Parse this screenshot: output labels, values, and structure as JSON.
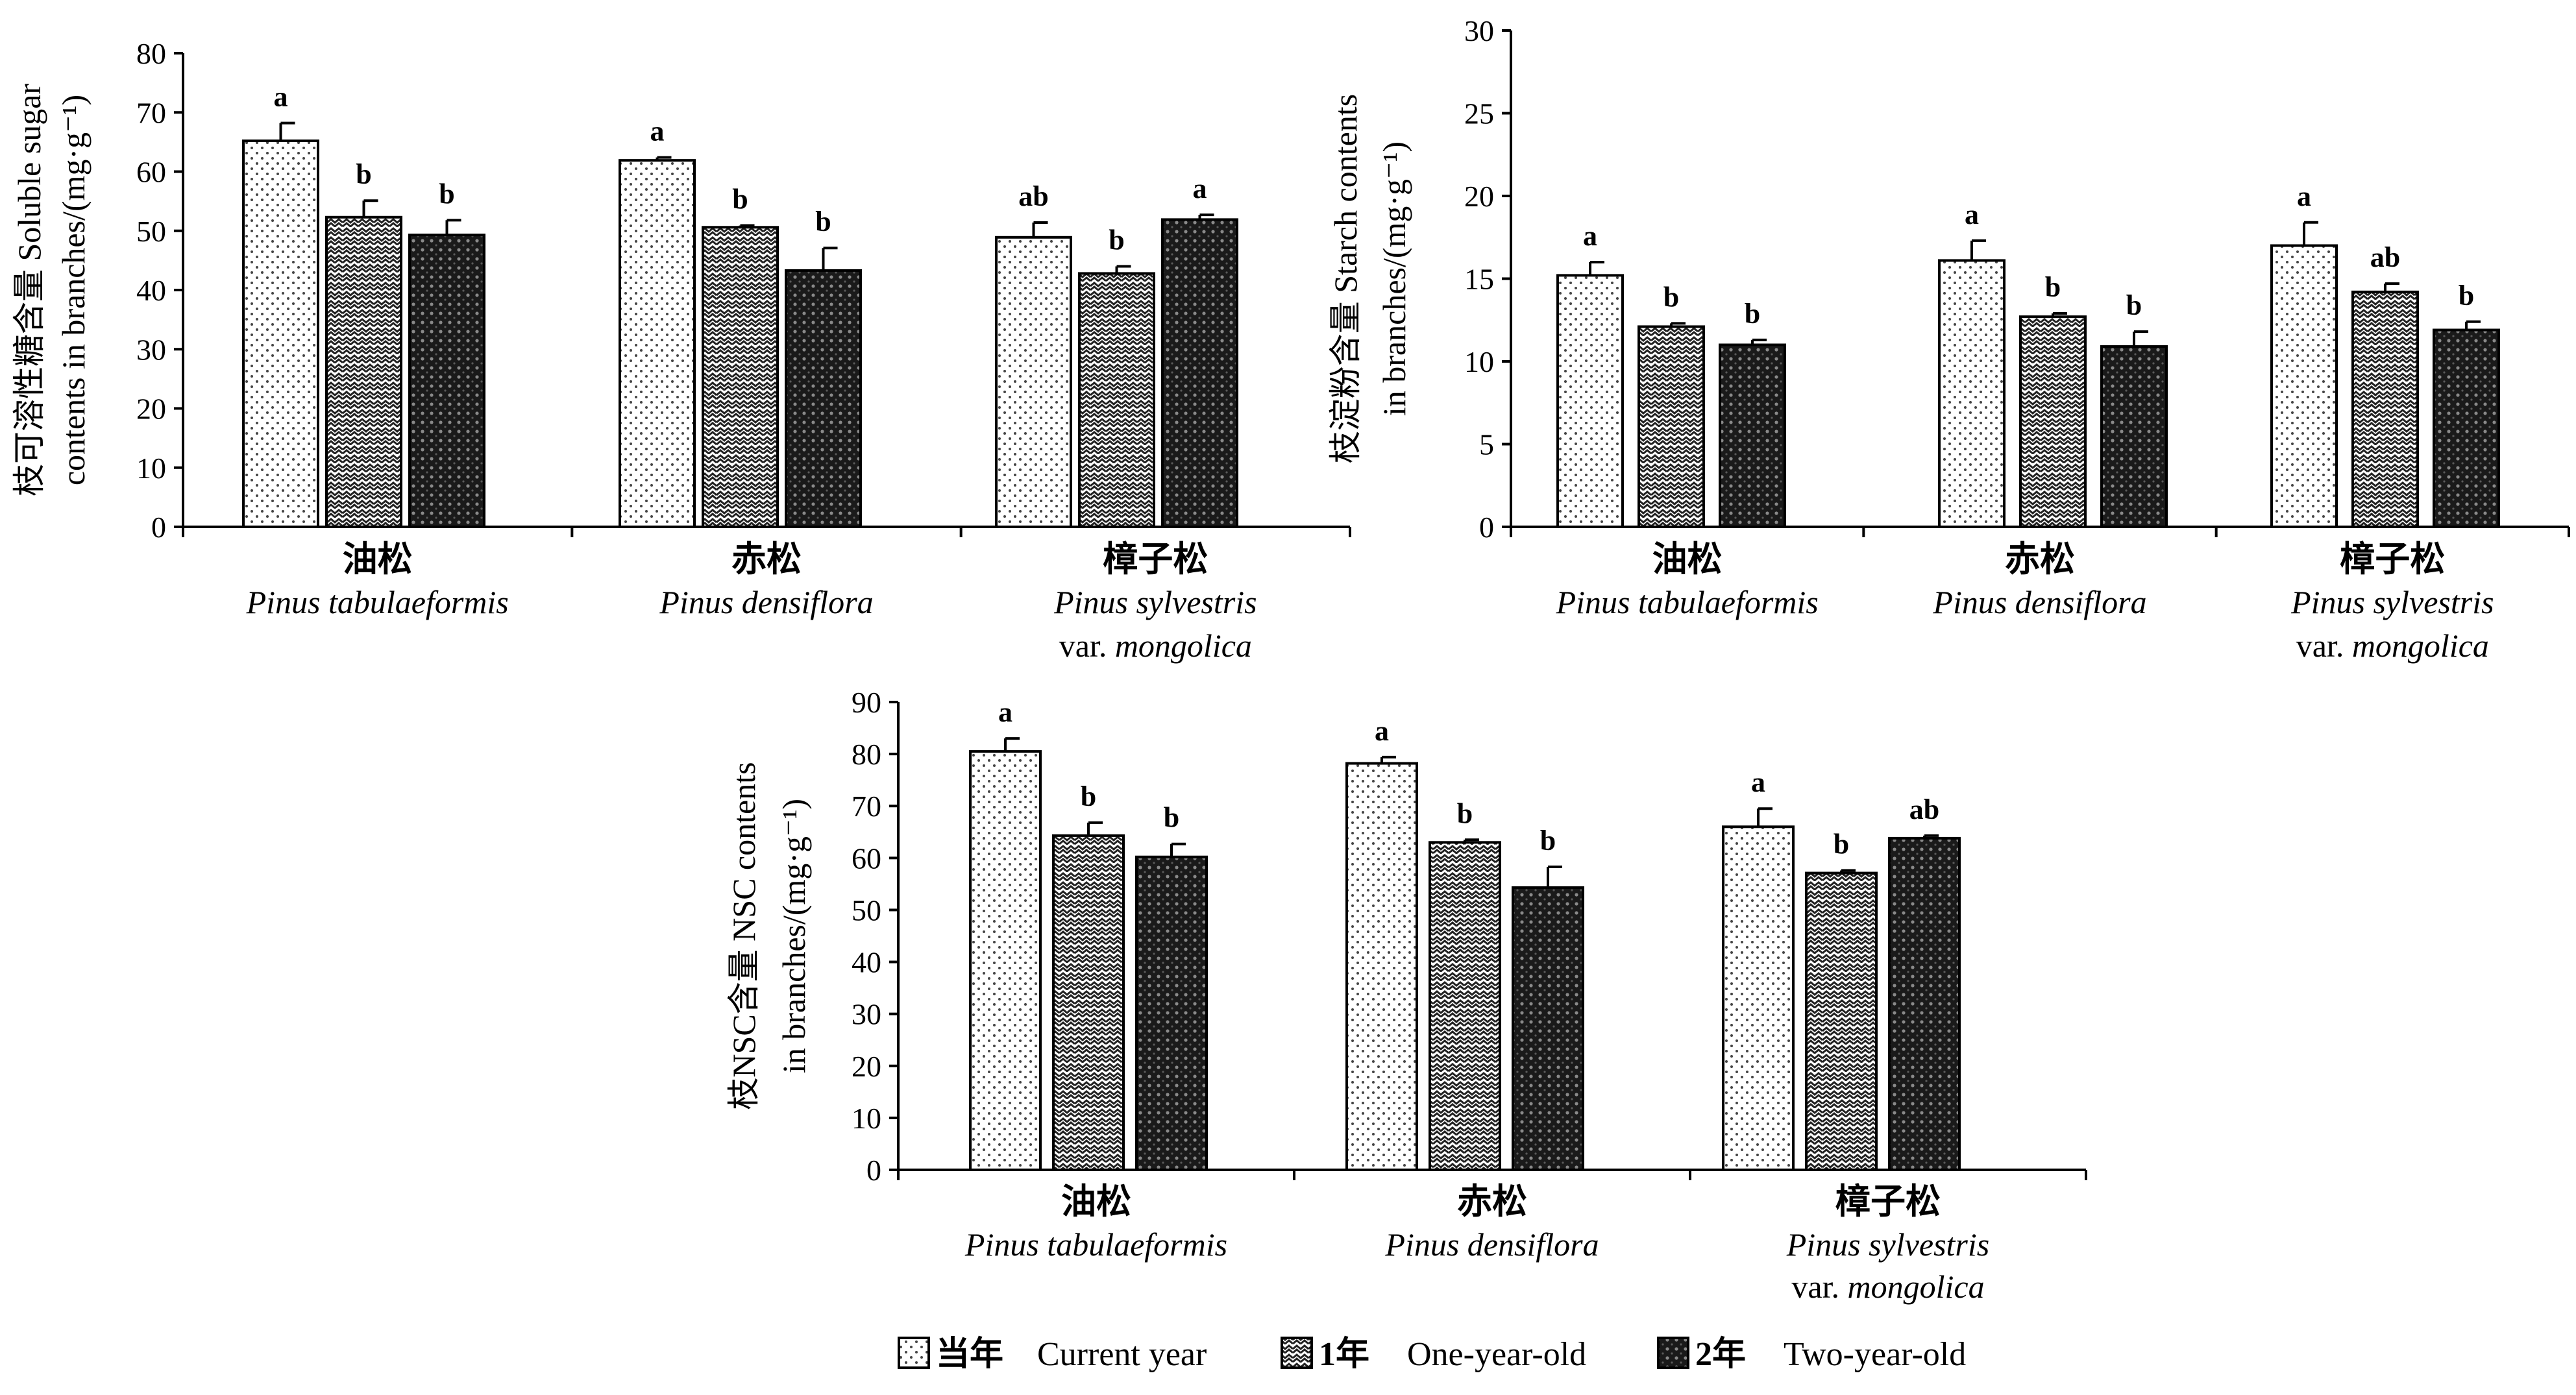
{
  "chart_data": [
    {
      "type": "bar",
      "categories": [
        {
          "zh": "油松",
          "en": "Pinus tabulaeformis",
          "en2": ""
        },
        {
          "zh": "赤松",
          "en": "Pinus densiflora",
          "en2": ""
        },
        {
          "zh": "樟子松",
          "en": "Pinus sylvestris",
          "en2": "var. mongolica"
        }
      ],
      "series": [
        {
          "values": [
            65.2,
            61.9,
            48.9
          ],
          "errors": [
            3.0,
            0.5,
            2.5
          ],
          "letters": [
            "a",
            "a",
            "ab"
          ]
        },
        {
          "values": [
            52.3,
            50.6,
            42.8
          ],
          "errors": [
            2.8,
            0.3,
            1.2
          ],
          "letters": [
            "b",
            "b",
            "b"
          ]
        },
        {
          "values": [
            49.3,
            43.3,
            51.9
          ],
          "errors": [
            2.5,
            3.8,
            0.8
          ],
          "letters": [
            "b",
            "b",
            "a"
          ]
        }
      ],
      "ylabel_line1": "枝可溶性糖含量  Soluble sugar",
      "ylabel_line2": "contents in branches/(mg·g⁻¹)",
      "ylim": [
        0,
        80
      ],
      "yticks": [
        0,
        10,
        20,
        30,
        40,
        50,
        60,
        70,
        80
      ]
    },
    {
      "type": "bar",
      "categories": [
        {
          "zh": "油松",
          "en": "Pinus tabulaeformis",
          "en2": ""
        },
        {
          "zh": "赤松",
          "en": "Pinus densiflora",
          "en2": ""
        },
        {
          "zh": "樟子松",
          "en": "Pinus sylvestris",
          "en2": "var. mongolica"
        }
      ],
      "series": [
        {
          "values": [
            15.2,
            16.1,
            17.0
          ],
          "errors": [
            0.8,
            1.2,
            1.4
          ],
          "letters": [
            "a",
            "a",
            "a"
          ]
        },
        {
          "values": [
            12.1,
            12.7,
            14.2
          ],
          "errors": [
            0.2,
            0.2,
            0.5
          ],
          "letters": [
            "b",
            "b",
            "ab"
          ]
        },
        {
          "values": [
            11.0,
            10.9,
            11.9
          ],
          "errors": [
            0.3,
            0.9,
            0.5
          ],
          "letters": [
            "b",
            "b",
            "b"
          ]
        }
      ],
      "ylabel_line1": "枝淀粉含量  Starch contents",
      "ylabel_line2": "in branches/(mg·g⁻¹)",
      "ylim": [
        0,
        30
      ],
      "yticks": [
        0,
        5,
        10,
        15,
        20,
        25,
        30
      ]
    },
    {
      "type": "bar",
      "categories": [
        {
          "zh": "油松",
          "en": "Pinus tabulaeformis",
          "en2": ""
        },
        {
          "zh": "赤松",
          "en": "Pinus densiflora",
          "en2": ""
        },
        {
          "zh": "樟子松",
          "en": "Pinus sylvestris",
          "en2": "var. mongolica"
        }
      ],
      "series": [
        {
          "values": [
            80.5,
            78.2,
            66.0
          ],
          "errors": [
            2.5,
            1.2,
            3.5
          ],
          "letters": [
            "a",
            "a",
            "a"
          ]
        },
        {
          "values": [
            64.3,
            63.0,
            57.1
          ],
          "errors": [
            2.5,
            0.5,
            0.5
          ],
          "letters": [
            "b",
            "b",
            "b"
          ]
        },
        {
          "values": [
            60.2,
            54.3,
            63.8
          ],
          "errors": [
            2.5,
            4.0,
            0.5
          ],
          "letters": [
            "b",
            "b",
            "ab"
          ]
        }
      ],
      "ylabel_line1": "枝NSC含量  NSC contents",
      "ylabel_line2": "in branches/(mg·g⁻¹)",
      "ylim": [
        0,
        90
      ],
      "yticks": [
        0,
        10,
        20,
        30,
        40,
        50,
        60,
        70,
        80,
        90
      ]
    }
  ],
  "legend": [
    {
      "zh": "当年",
      "en": "Current year",
      "pattern": "dots"
    },
    {
      "zh": "1年",
      "en": "One-year-old",
      "pattern": "wave"
    },
    {
      "zh": "2年",
      "en": "Two-year-old",
      "pattern": "dark-grid"
    }
  ]
}
